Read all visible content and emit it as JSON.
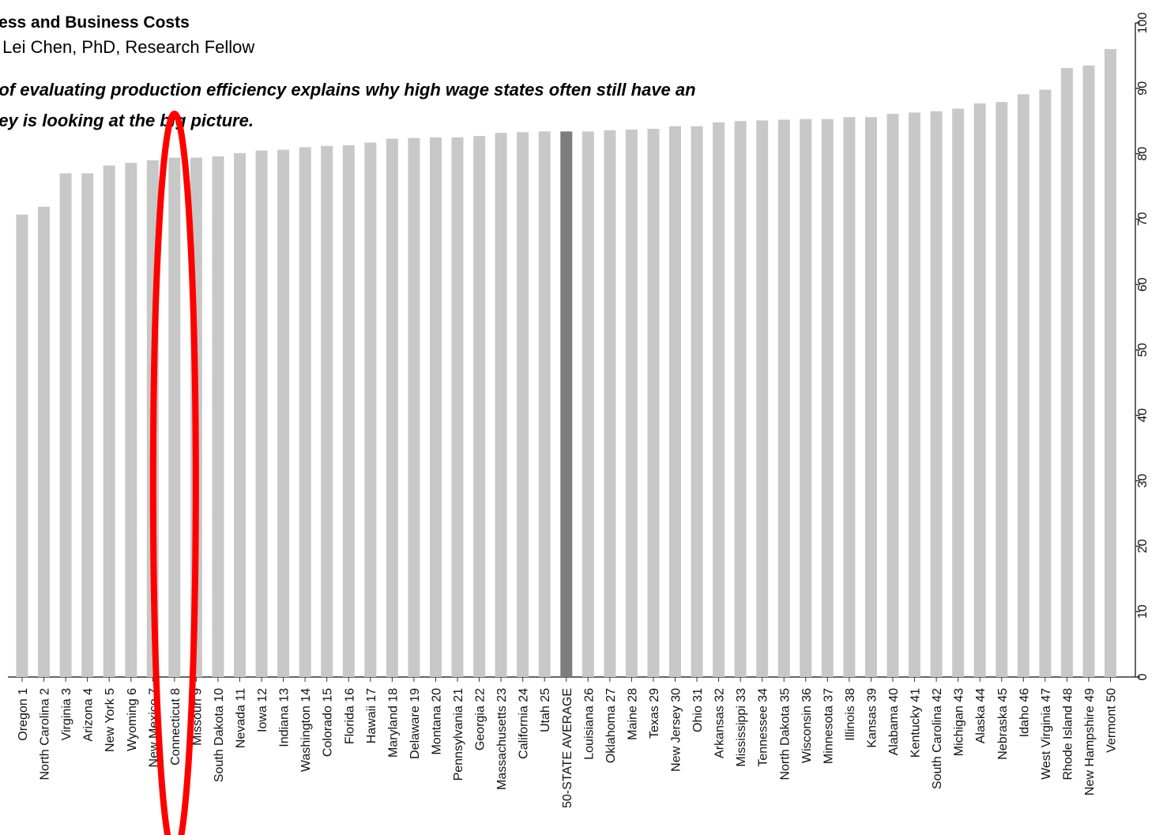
{
  "header": {
    "title": "veness and Business Costs",
    "byline": "y Lei Chen, PhD, Research Fellow",
    "subtitle_line1": "y of evaluating production efficiency explains why high wage states often still have an",
    "subtitle_line2": "key is looking at the big picture."
  },
  "chart_data": {
    "type": "bar",
    "categories": [
      "Oregon 1",
      "North Carolina 2",
      "Virginia 3",
      "Arizona 4",
      "New York 5",
      "Wyoming 6",
      "New Mexico 7",
      "Connecticut 8",
      "Missouri 9",
      "South Dakota 10",
      "Nevada 11",
      "Iowa 12",
      "Indiana 13",
      "Washington 14",
      "Colorado 15",
      "Florida 16",
      "Hawaii 17",
      "Maryland 18",
      "Delaware 19",
      "Montana 20",
      "Pennsylvania 21",
      "Georgia 22",
      "Massachusetts 23",
      "California 24",
      "Utah 25",
      "50-STATE AVERAGE",
      "Louisiana 26",
      "Oklahoma 27",
      "Maine 28",
      "Texas 29",
      "New Jersey 30",
      "Ohio 31",
      "Arkansas 32",
      "Mississippi 33",
      "Tennessee 34",
      "North Dakota 35",
      "Wisconsin 36",
      "Minnesota 37",
      "Illinois 38",
      "Kansas 39",
      "Alabama 40",
      "Kentucky 41",
      "South Carolina 42",
      "Michigan 43",
      "Alaska 44",
      "Nebraska 45",
      "Idaho 46",
      "West Virginia 47",
      "Rhode Island 48",
      "New Hampshire 49",
      "Vermont 50"
    ],
    "values": [
      70.7,
      71.9,
      77.0,
      77.0,
      78.2,
      78.6,
      79.0,
      79.4,
      79.4,
      79.6,
      80.1,
      80.5,
      80.6,
      81.0,
      81.2,
      81.3,
      81.7,
      82.3,
      82.4,
      82.5,
      82.5,
      82.7,
      83.2,
      83.3,
      83.4,
      83.4,
      83.4,
      83.6,
      83.7,
      83.8,
      84.2,
      84.2,
      84.8,
      85.0,
      85.1,
      85.2,
      85.3,
      85.3,
      85.6,
      85.6,
      86.1,
      86.3,
      86.5,
      86.9,
      87.7,
      87.9,
      89.1,
      89.8,
      93.1,
      93.5,
      96.0
    ],
    "highlight_category": "50-STATE AVERAGE",
    "yaxis_ticks": [
      0,
      10,
      20,
      30,
      40,
      50,
      60,
      70,
      80,
      90,
      100
    ],
    "ylim": [
      0,
      100
    ],
    "yaxis_position": "right",
    "grid": false,
    "colors": {
      "bar": "#c8c8c8",
      "highlight_bar": "#7d7d7d",
      "axis": "#333333",
      "annotation": "#ff0000"
    },
    "annotation": {
      "shape": "ellipse",
      "target_category": "Connecticut 8"
    }
  }
}
